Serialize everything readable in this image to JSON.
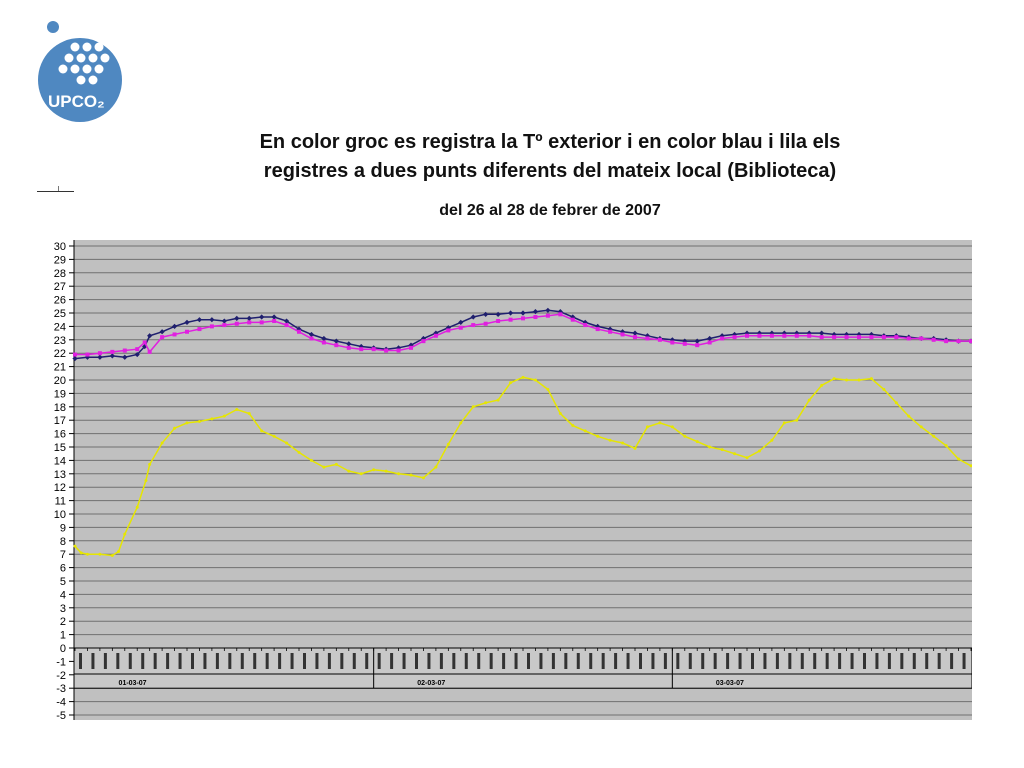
{
  "logo": {
    "text": "UPCO₂",
    "colors": {
      "disc": "#4f88c1",
      "dot": "#ffffff"
    }
  },
  "title_line1": "En color groc es registra la Tº exterior i en color blau i lila els",
  "title_line2": "registres a dues punts diferents del mateix local (Biblioteca)",
  "subtitle": "del 26 al 28 de febrer de 2007",
  "chart_data": {
    "type": "line",
    "title": "",
    "xlabel": "",
    "ylabel": "",
    "ylim": [
      -5,
      30
    ],
    "y_ticks": [
      30,
      29,
      28,
      27,
      26,
      25,
      24,
      23,
      22,
      21,
      20,
      19,
      18,
      17,
      16,
      15,
      14,
      13,
      12,
      11,
      10,
      9,
      8,
      7,
      6,
      5,
      4,
      3,
      2,
      1,
      0,
      -1,
      -2,
      -3,
      -4,
      -5
    ],
    "grid": true,
    "plot_background": "#c0c0c0",
    "day_labels": [
      "01-03-07",
      "02-03-07",
      "03-03-07"
    ],
    "x_hours": [
      0,
      72
    ],
    "series": [
      {
        "name": "",
        "color": "#1f1f6e",
        "marker": "diamond",
        "points": [
          [
            0,
            21.6
          ],
          [
            1,
            21.7
          ],
          [
            2,
            21.7
          ],
          [
            3,
            21.8
          ],
          [
            4,
            21.7
          ],
          [
            5,
            21.9
          ],
          [
            5.6,
            22.5
          ],
          [
            6,
            23.3
          ],
          [
            7,
            23.6
          ],
          [
            8,
            24.0
          ],
          [
            9,
            24.3
          ],
          [
            10,
            24.5
          ],
          [
            11,
            24.5
          ],
          [
            12,
            24.4
          ],
          [
            13,
            24.6
          ],
          [
            14,
            24.6
          ],
          [
            15,
            24.7
          ],
          [
            16,
            24.7
          ],
          [
            17,
            24.4
          ],
          [
            18,
            23.8
          ],
          [
            19,
            23.4
          ],
          [
            20,
            23.1
          ],
          [
            21,
            22.9
          ],
          [
            22,
            22.7
          ],
          [
            23,
            22.5
          ],
          [
            24,
            22.4
          ],
          [
            25,
            22.3
          ],
          [
            26,
            22.4
          ],
          [
            27,
            22.6
          ],
          [
            28,
            23.1
          ],
          [
            29,
            23.5
          ],
          [
            30,
            23.9
          ],
          [
            31,
            24.3
          ],
          [
            32,
            24.7
          ],
          [
            33,
            24.9
          ],
          [
            34,
            24.9
          ],
          [
            35,
            25.0
          ],
          [
            36,
            25.0
          ],
          [
            37,
            25.1
          ],
          [
            38,
            25.2
          ],
          [
            39,
            25.1
          ],
          [
            40,
            24.7
          ],
          [
            41,
            24.3
          ],
          [
            42,
            24.0
          ],
          [
            43,
            23.8
          ],
          [
            44,
            23.6
          ],
          [
            45,
            23.5
          ],
          [
            46,
            23.3
          ],
          [
            47,
            23.1
          ],
          [
            48,
            23.0
          ],
          [
            49,
            22.9
          ],
          [
            50,
            22.9
          ],
          [
            51,
            23.1
          ],
          [
            52,
            23.3
          ],
          [
            53,
            23.4
          ],
          [
            54,
            23.5
          ],
          [
            55,
            23.5
          ],
          [
            56,
            23.5
          ],
          [
            57,
            23.5
          ],
          [
            58,
            23.5
          ],
          [
            59,
            23.5
          ],
          [
            60,
            23.5
          ],
          [
            61,
            23.4
          ],
          [
            62,
            23.4
          ],
          [
            63,
            23.4
          ],
          [
            64,
            23.4
          ],
          [
            65,
            23.3
          ],
          [
            66,
            23.3
          ],
          [
            67,
            23.2
          ],
          [
            68,
            23.1
          ],
          [
            69,
            23.1
          ],
          [
            70,
            23.0
          ],
          [
            71,
            22.9
          ],
          [
            72,
            22.9
          ]
        ]
      },
      {
        "name": "",
        "color": "#e020e0",
        "marker": "square",
        "points": [
          [
            0,
            21.9
          ],
          [
            1,
            21.9
          ],
          [
            2,
            22.0
          ],
          [
            3,
            22.1
          ],
          [
            4,
            22.2
          ],
          [
            5,
            22.3
          ],
          [
            5.6,
            22.8
          ],
          [
            6,
            22.1
          ],
          [
            7,
            23.2
          ],
          [
            8,
            23.4
          ],
          [
            9,
            23.6
          ],
          [
            10,
            23.8
          ],
          [
            11,
            24.0
          ],
          [
            12,
            24.1
          ],
          [
            13,
            24.2
          ],
          [
            14,
            24.3
          ],
          [
            15,
            24.3
          ],
          [
            16,
            24.4
          ],
          [
            17,
            24.1
          ],
          [
            18,
            23.6
          ],
          [
            19,
            23.1
          ],
          [
            20,
            22.8
          ],
          [
            21,
            22.6
          ],
          [
            22,
            22.4
          ],
          [
            23,
            22.3
          ],
          [
            24,
            22.3
          ],
          [
            25,
            22.2
          ],
          [
            26,
            22.2
          ],
          [
            27,
            22.4
          ],
          [
            28,
            22.9
          ],
          [
            29,
            23.3
          ],
          [
            30,
            23.7
          ],
          [
            31,
            23.9
          ],
          [
            32,
            24.1
          ],
          [
            33,
            24.2
          ],
          [
            34,
            24.4
          ],
          [
            35,
            24.5
          ],
          [
            36,
            24.6
          ],
          [
            37,
            24.7
          ],
          [
            38,
            24.8
          ],
          [
            39,
            24.9
          ],
          [
            40,
            24.5
          ],
          [
            41,
            24.1
          ],
          [
            42,
            23.8
          ],
          [
            43,
            23.6
          ],
          [
            44,
            23.4
          ],
          [
            45,
            23.2
          ],
          [
            46,
            23.1
          ],
          [
            47,
            23.0
          ],
          [
            48,
            22.8
          ],
          [
            49,
            22.7
          ],
          [
            50,
            22.6
          ],
          [
            51,
            22.8
          ],
          [
            52,
            23.1
          ],
          [
            53,
            23.2
          ],
          [
            54,
            23.3
          ],
          [
            55,
            23.3
          ],
          [
            56,
            23.3
          ],
          [
            57,
            23.3
          ],
          [
            58,
            23.3
          ],
          [
            59,
            23.3
          ],
          [
            60,
            23.2
          ],
          [
            61,
            23.2
          ],
          [
            62,
            23.2
          ],
          [
            63,
            23.2
          ],
          [
            64,
            23.2
          ],
          [
            65,
            23.2
          ],
          [
            66,
            23.2
          ],
          [
            67,
            23.1
          ],
          [
            68,
            23.1
          ],
          [
            69,
            23.0
          ],
          [
            70,
            22.9
          ],
          [
            71,
            22.9
          ],
          [
            72,
            22.9
          ]
        ]
      },
      {
        "name": "",
        "color": "#e6e600",
        "marker": "dot",
        "points": [
          [
            0,
            7.6
          ],
          [
            0.5,
            7.1
          ],
          [
            1,
            7.0
          ],
          [
            2,
            7.0
          ],
          [
            3,
            6.9
          ],
          [
            3.5,
            7.2
          ],
          [
            4,
            8.5
          ],
          [
            5,
            10.5
          ],
          [
            5.7,
            12.5
          ],
          [
            6,
            13.7
          ],
          [
            7,
            15.3
          ],
          [
            8,
            16.4
          ],
          [
            9,
            16.8
          ],
          [
            10,
            16.9
          ],
          [
            11,
            17.1
          ],
          [
            12,
            17.3
          ],
          [
            13,
            17.8
          ],
          [
            14,
            17.5
          ],
          [
            15,
            16.2
          ],
          [
            16,
            15.8
          ],
          [
            17,
            15.3
          ],
          [
            18,
            14.6
          ],
          [
            19,
            14.0
          ],
          [
            20,
            13.5
          ],
          [
            21,
            13.7
          ],
          [
            22,
            13.2
          ],
          [
            23,
            13.0
          ],
          [
            24,
            13.3
          ],
          [
            25,
            13.2
          ],
          [
            26,
            13.0
          ],
          [
            27,
            12.9
          ],
          [
            28,
            12.7
          ],
          [
            29,
            13.5
          ],
          [
            30,
            15.2
          ],
          [
            31,
            16.8
          ],
          [
            32,
            18.0
          ],
          [
            33,
            18.3
          ],
          [
            34,
            18.5
          ],
          [
            35,
            19.8
          ],
          [
            36,
            20.2
          ],
          [
            37,
            20.0
          ],
          [
            38,
            19.3
          ],
          [
            39,
            17.5
          ],
          [
            40,
            16.6
          ],
          [
            41,
            16.2
          ],
          [
            42,
            15.8
          ],
          [
            43,
            15.5
          ],
          [
            44,
            15.3
          ],
          [
            45,
            14.9
          ],
          [
            46,
            16.5
          ],
          [
            47,
            16.8
          ],
          [
            48,
            16.5
          ],
          [
            49,
            15.8
          ],
          [
            50,
            15.4
          ],
          [
            51,
            15.0
          ],
          [
            52,
            14.8
          ],
          [
            53,
            14.5
          ],
          [
            54,
            14.2
          ],
          [
            55,
            14.7
          ],
          [
            56,
            15.5
          ],
          [
            57,
            16.8
          ],
          [
            58,
            17.0
          ],
          [
            59,
            18.5
          ],
          [
            60,
            19.6
          ],
          [
            61,
            20.1
          ],
          [
            62,
            20.0
          ],
          [
            63,
            20.0
          ],
          [
            64,
            20.1
          ],
          [
            65,
            19.3
          ],
          [
            66,
            18.3
          ],
          [
            67,
            17.3
          ],
          [
            68,
            16.5
          ],
          [
            69,
            15.8
          ],
          [
            70,
            15.1
          ],
          [
            71,
            14.1
          ],
          [
            72,
            13.6
          ]
        ]
      }
    ]
  }
}
